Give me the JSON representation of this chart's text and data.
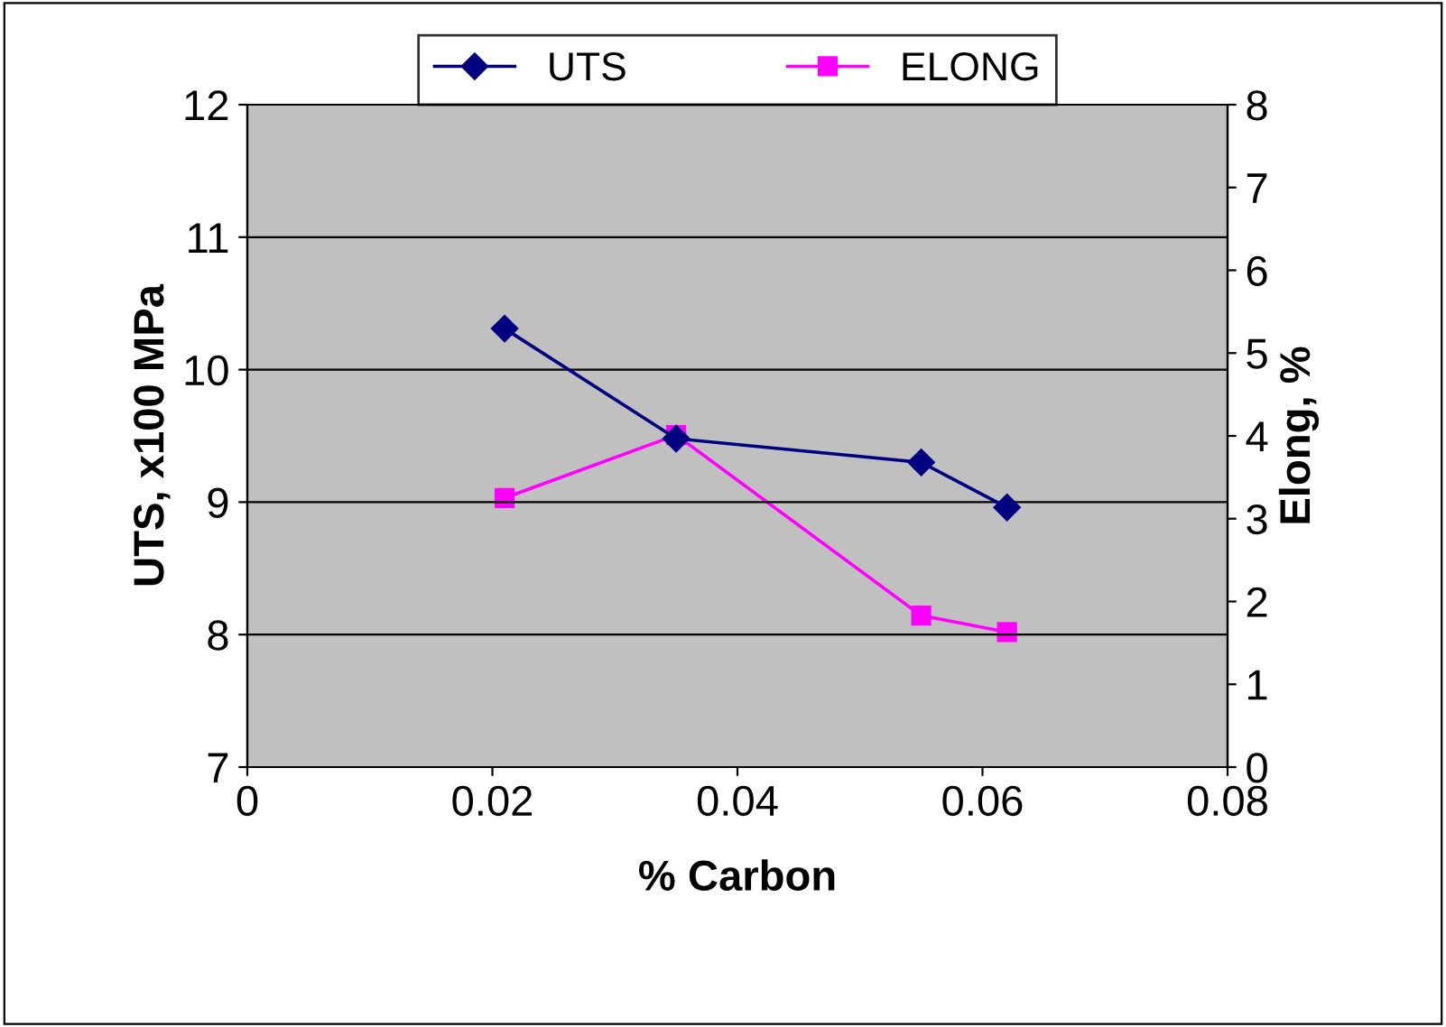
{
  "chart_data": {
    "type": "line",
    "xlabel": "% Carbon",
    "ylabel": "UTS, x100 MPa",
    "y2label": "Elong, %",
    "x": [
      0.021,
      0.035,
      0.055,
      0.062
    ],
    "series": [
      {
        "name": "UTS",
        "color": "#000080",
        "marker": "diamond",
        "values": [
          10.31,
          9.48,
          9.3,
          8.96
        ]
      },
      {
        "name": "ELONG",
        "color": "#ff00ff",
        "marker": "square",
        "axis": "y2",
        "values": [
          3.25,
          4.01,
          1.83,
          1.63
        ]
      }
    ],
    "xlim": [
      0,
      0.08
    ],
    "xticks": [
      0,
      0.02,
      0.04,
      0.06,
      0.08
    ],
    "ylim": [
      7,
      12
    ],
    "yticks": [
      7,
      8,
      9,
      10,
      11,
      12
    ],
    "y2lim": [
      0,
      8
    ],
    "y2ticks": [
      0,
      1,
      2,
      3,
      4,
      5,
      6,
      7,
      8
    ],
    "grid": "y",
    "legend": "top",
    "line_style": "solid"
  }
}
